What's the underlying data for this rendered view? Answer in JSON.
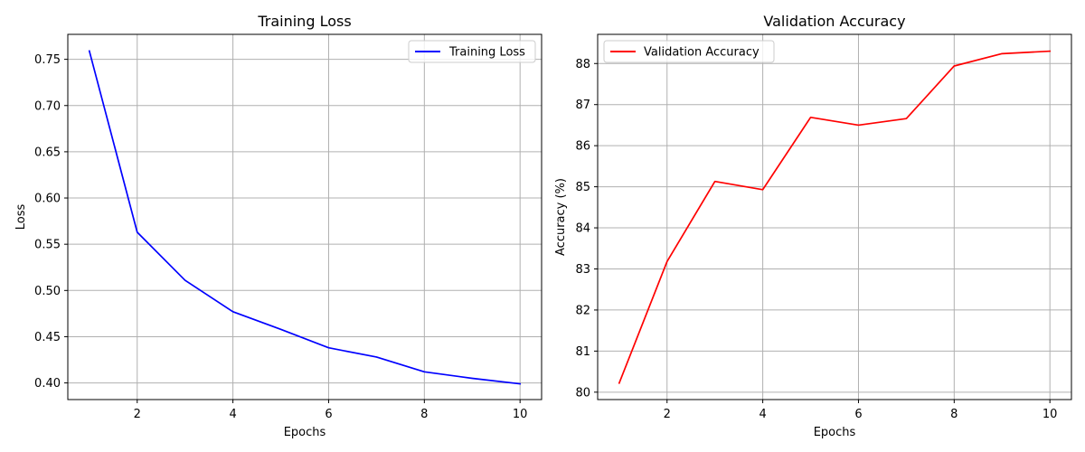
{
  "chart_data": [
    {
      "type": "line",
      "title": "Training Loss",
      "xlabel": "Epochs",
      "ylabel": "Loss",
      "x": [
        1,
        2,
        3,
        4,
        5,
        6,
        7,
        8,
        9,
        10
      ],
      "series": [
        {
          "name": "Training Loss",
          "color": "#0000ff",
          "values": [
            0.759,
            0.563,
            0.511,
            0.477,
            0.458,
            0.438,
            0.428,
            0.412,
            0.405,
            0.399
          ]
        }
      ],
      "xlim": [
        0.55,
        10.45
      ],
      "ylim": [
        0.382,
        0.777
      ],
      "xticks": [
        2,
        4,
        6,
        8,
        10
      ],
      "xtick_labels": [
        "2",
        "4",
        "6",
        "8",
        "10"
      ],
      "yticks": [
        0.4,
        0.45,
        0.5,
        0.55,
        0.6,
        0.65,
        0.7,
        0.75
      ],
      "ytick_labels": [
        "0.40",
        "0.45",
        "0.50",
        "0.55",
        "0.60",
        "0.65",
        "0.70",
        "0.75"
      ],
      "grid": true,
      "legend_loc": "upper right"
    },
    {
      "type": "line",
      "title": "Validation Accuracy",
      "xlabel": "Epochs",
      "ylabel": "Accuracy (%)",
      "x": [
        1,
        2,
        3,
        4,
        5,
        6,
        7,
        8,
        9,
        10
      ],
      "series": [
        {
          "name": "Validation Accuracy",
          "color": "#ff0000",
          "values": [
            80.22,
            83.18,
            85.13,
            84.93,
            86.69,
            86.5,
            86.66,
            87.94,
            88.24,
            88.3
          ]
        }
      ],
      "xlim": [
        0.55,
        10.45
      ],
      "ylim": [
        79.82,
        88.71
      ],
      "xticks": [
        2,
        4,
        6,
        8,
        10
      ],
      "xtick_labels": [
        "2",
        "4",
        "6",
        "8",
        "10"
      ],
      "yticks": [
        80,
        81,
        82,
        83,
        84,
        85,
        86,
        87,
        88
      ],
      "ytick_labels": [
        "80",
        "81",
        "82",
        "83",
        "84",
        "85",
        "86",
        "87",
        "88"
      ],
      "grid": true,
      "legend_loc": "upper left"
    }
  ]
}
